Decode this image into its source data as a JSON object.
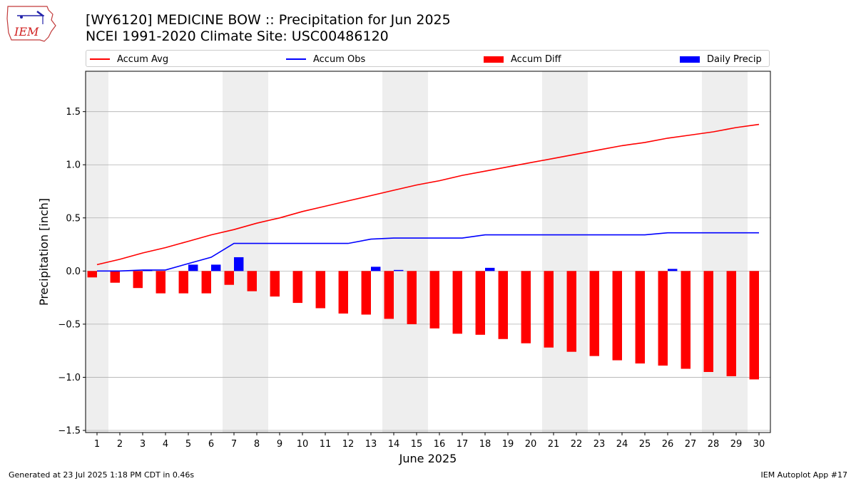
{
  "header": {
    "title_line1": "[WY6120] MEDICINE BOW :: Precipitation for Jun 2025",
    "title_line2": "NCEI 1991-2020 Climate Site: USC00486120"
  },
  "logo": {
    "text": "IEM",
    "icon": "iem-iowa-logo-icon"
  },
  "footer": {
    "left": "Generated at 23 Jul 2025 1:18 PM CDT in 0.46s",
    "right": "IEM Autoplot App #17"
  },
  "colors": {
    "accum_avg": "#ff0000",
    "accum_obs": "#0000ff",
    "accum_diff": "#ff0000",
    "daily_precip": "#0000ff",
    "weekend_band": "#eeeeee",
    "grid": "#b0b0b0"
  },
  "chart_data": {
    "type": "bar",
    "xlabel": "June 2025",
    "ylabel": "Precipitation [inch]",
    "xlim": [
      0.5,
      30.5
    ],
    "ylim": [
      -1.52,
      1.88
    ],
    "yticks": [
      -1.5,
      -1.0,
      -0.5,
      0.0,
      0.5,
      1.0,
      1.5
    ],
    "ytick_labels": [
      "−1.5",
      "−1.0",
      "−0.5",
      "0.0",
      "0.5",
      "1.0",
      "1.5"
    ],
    "grid": "horizontal",
    "legend_placement": "top",
    "x": [
      1,
      2,
      3,
      4,
      5,
      6,
      7,
      8,
      9,
      10,
      11,
      12,
      13,
      14,
      15,
      16,
      17,
      18,
      19,
      20,
      21,
      22,
      23,
      24,
      25,
      26,
      27,
      28,
      29,
      30
    ],
    "weekend_days": [
      1,
      7,
      8,
      14,
      15,
      21,
      22,
      28,
      29
    ],
    "series": [
      {
        "name": "Accum Avg",
        "kind": "line",
        "values": [
          0.06,
          0.11,
          0.17,
          0.22,
          0.28,
          0.34,
          0.39,
          0.45,
          0.5,
          0.56,
          0.61,
          0.66,
          0.71,
          0.76,
          0.81,
          0.85,
          0.9,
          0.94,
          0.98,
          1.02,
          1.06,
          1.1,
          1.14,
          1.18,
          1.21,
          1.25,
          1.28,
          1.31,
          1.35,
          1.38
        ]
      },
      {
        "name": "Accum Obs",
        "kind": "line",
        "values": [
          0.0,
          0.0,
          0.01,
          0.01,
          0.07,
          0.13,
          0.26,
          0.26,
          0.26,
          0.26,
          0.26,
          0.26,
          0.3,
          0.31,
          0.31,
          0.31,
          0.31,
          0.34,
          0.34,
          0.34,
          0.34,
          0.34,
          0.34,
          0.34,
          0.34,
          0.36,
          0.36,
          0.36,
          0.36,
          0.36
        ]
      },
      {
        "name": "Accum Diff",
        "kind": "bar",
        "values": [
          -0.06,
          -0.11,
          -0.16,
          -0.21,
          -0.21,
          -0.21,
          -0.13,
          -0.19,
          -0.24,
          -0.3,
          -0.35,
          -0.4,
          -0.41,
          -0.45,
          -0.5,
          -0.54,
          -0.59,
          -0.6,
          -0.64,
          -0.68,
          -0.72,
          -0.76,
          -0.8,
          -0.84,
          -0.87,
          -0.89,
          -0.92,
          -0.95,
          -0.99,
          -1.02
        ]
      },
      {
        "name": "Daily Precip",
        "kind": "bar",
        "values": [
          0.0,
          0.0,
          0.01,
          0.0,
          0.06,
          0.06,
          0.13,
          0.0,
          0.0,
          0.0,
          0.0,
          0.0,
          0.04,
          0.01,
          0.0,
          0.0,
          0.0,
          0.03,
          0.0,
          0.0,
          0.0,
          0.0,
          0.0,
          0.0,
          0.0,
          0.02,
          0.0,
          0.0,
          0.0,
          0.0
        ]
      }
    ]
  }
}
